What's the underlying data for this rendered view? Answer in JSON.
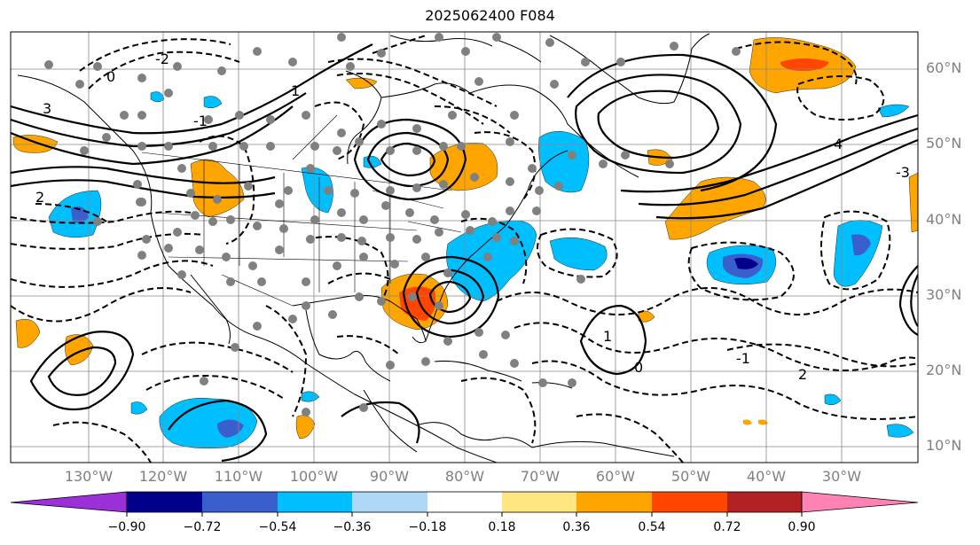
{
  "title": "2025062400 F084",
  "lat_labels": [
    "10°N",
    "20°N",
    "30°N",
    "40°N",
    "50°N",
    "60°N"
  ],
  "lon_labels": [
    "130°W",
    "120°W",
    "110°W",
    "100°W",
    "90°W",
    "80°W",
    "70°W",
    "60°W",
    "50°W",
    "40°W",
    "30°W"
  ],
  "colorbar": {
    "ticks": [
      "−0.90",
      "−0.72",
      "−0.54",
      "−0.36",
      "−0.18",
      "0.18",
      "0.36",
      "0.54",
      "0.72",
      "0.90"
    ],
    "colors": [
      "#9b30d9",
      "#00008b",
      "#3a5fcd",
      "#00bfff",
      "#add8f6",
      "#ffffff",
      "#ffe680",
      "#ffa500",
      "#ff4500",
      "#b22222",
      "#ff82b4"
    ]
  },
  "contour_labels": [
    "0",
    "-2",
    "-1",
    "1",
    "2",
    "3",
    "4",
    "-3",
    "0",
    "-1",
    "1",
    "2"
  ],
  "map": {
    "lon_range": [
      -137,
      -25
    ],
    "lat_range": [
      7,
      65
    ],
    "fill_colors": {
      "orange": "#ffa500",
      "red": "#ff4500",
      "darkred": "#b22222",
      "blue": "#00bfff",
      "mid_blue": "#3a5fcd",
      "navy": "#00008b"
    }
  }
}
